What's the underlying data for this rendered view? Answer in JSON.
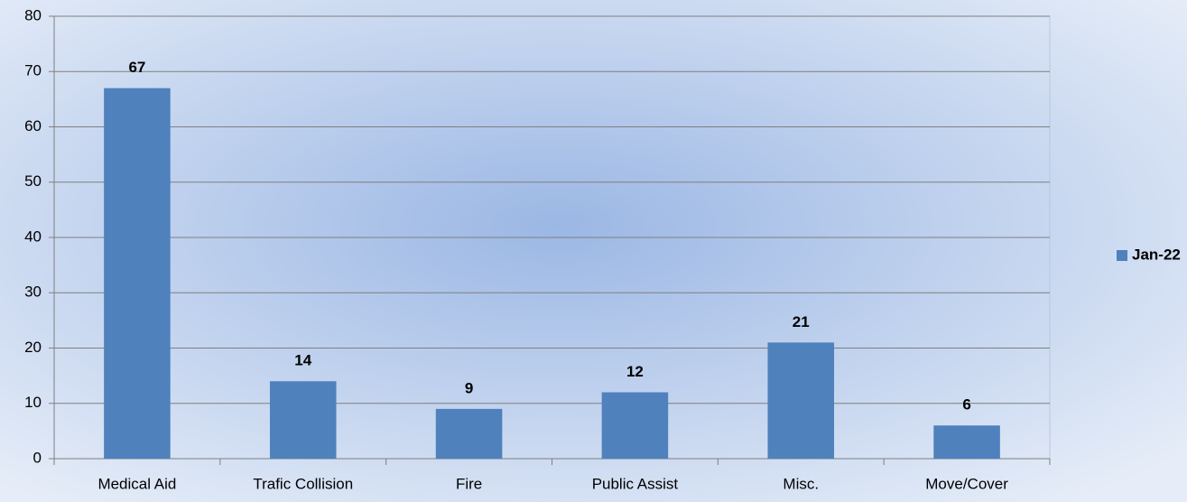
{
  "chart_data": {
    "type": "bar",
    "categories": [
      "Medical Aid",
      "Trafic Collision",
      "Fire",
      "Public Assist",
      "Misc.",
      "Move/Cover"
    ],
    "series": [
      {
        "name": "Jan-22",
        "color": "#4f81bd",
        "values": [
          67,
          14,
          9,
          12,
          21,
          6
        ]
      }
    ],
    "ylim": [
      0,
      80
    ],
    "yticks": [
      0,
      10,
      20,
      30,
      40,
      50,
      60,
      70,
      80
    ],
    "grid": true,
    "legend": "right",
    "data_labels": true
  }
}
